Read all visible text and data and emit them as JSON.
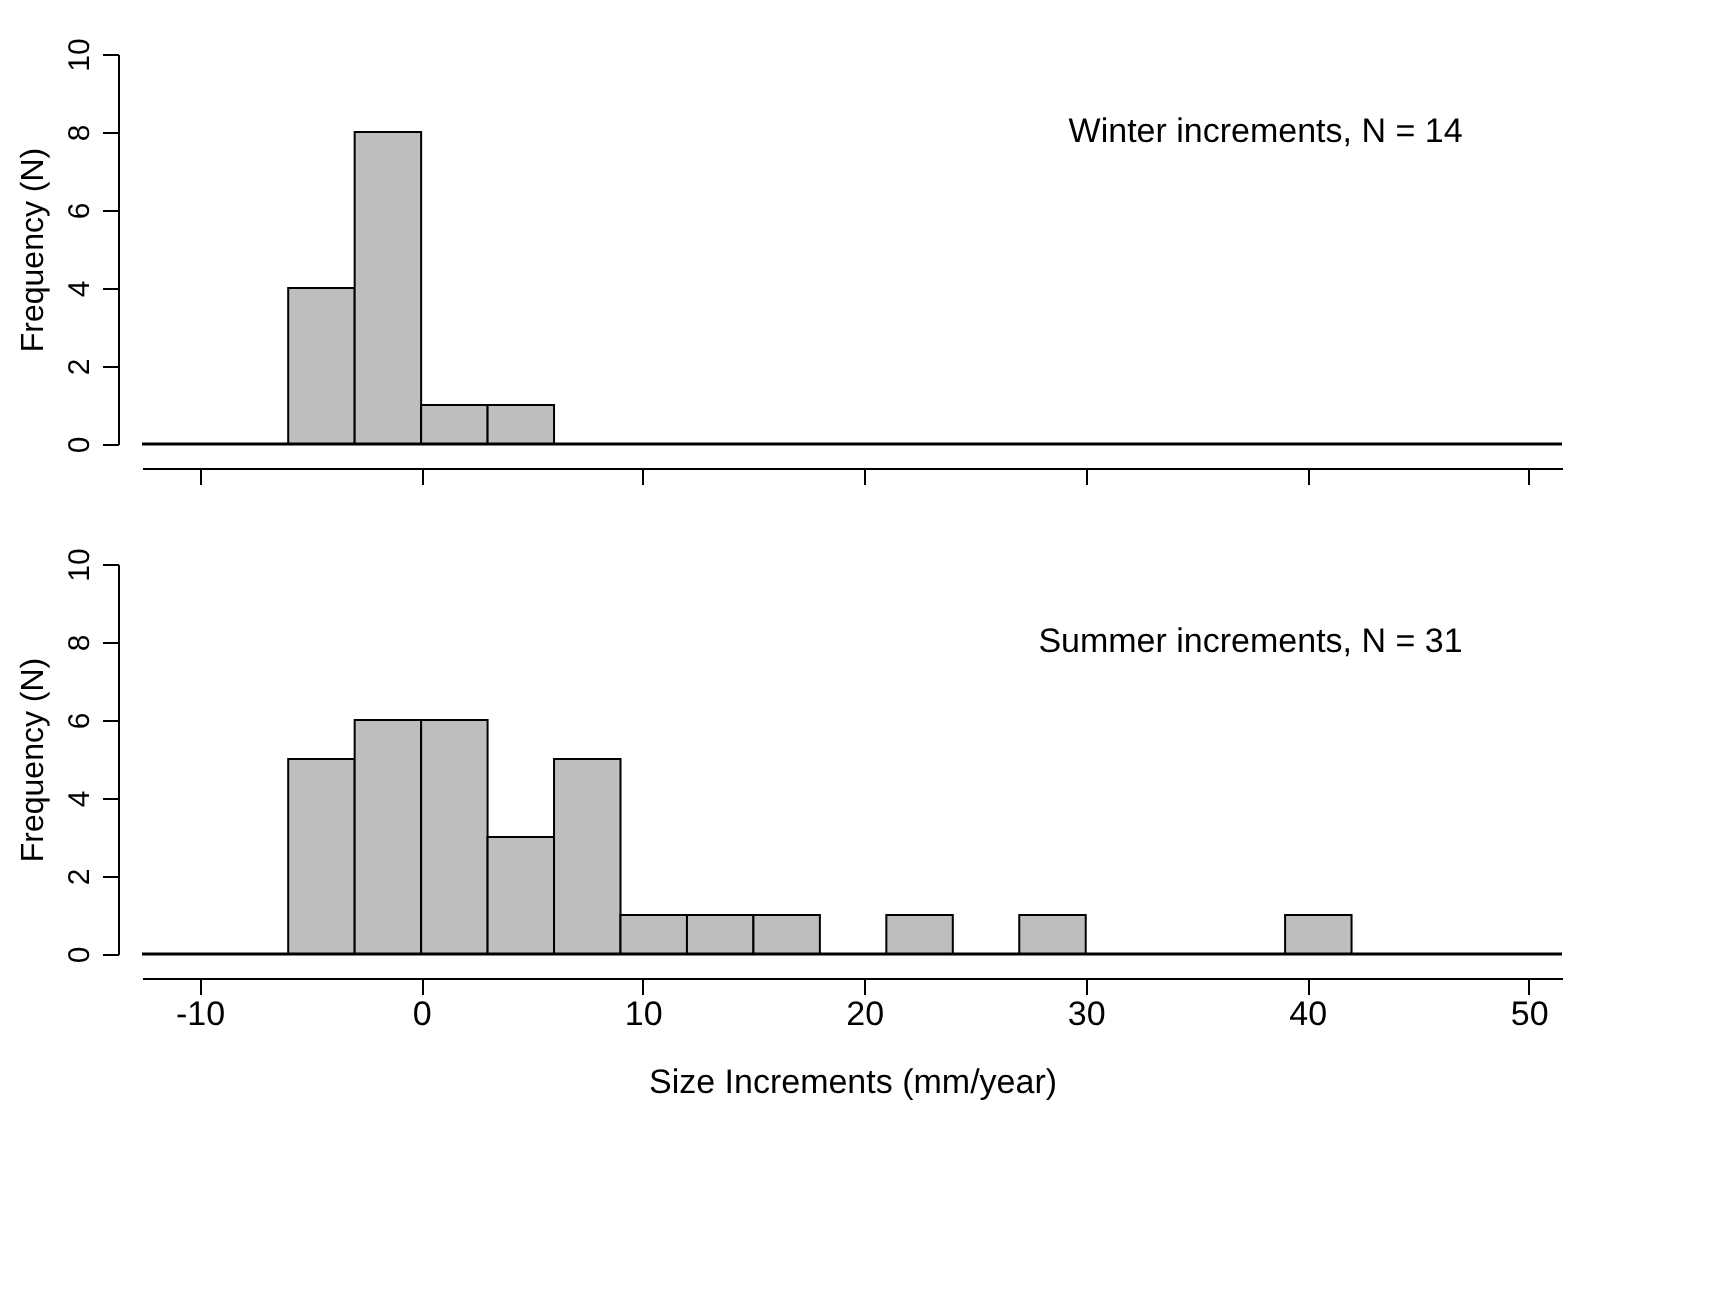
{
  "chart_data": [
    {
      "type": "histogram",
      "bins": [
        -6,
        -3,
        0,
        3,
        6
      ],
      "values": [
        4,
        8,
        1,
        1
      ],
      "color": "#bebebe",
      "xlim": [
        -12.6,
        51.5
      ],
      "xticks": [
        -10,
        0,
        10,
        20,
        30,
        40,
        50
      ],
      "ylim": [
        0,
        10
      ],
      "yticks": [
        0,
        2,
        4,
        6,
        8,
        10
      ],
      "ylabel": "Frequency (N)",
      "tick_labels": "y",
      "annotations": [
        "Winter increments, N = 14"
      ]
    },
    {
      "type": "histogram",
      "bins": [
        -6,
        -3,
        0,
        3,
        6,
        9,
        12,
        15,
        18,
        21,
        24,
        27,
        30,
        33,
        36,
        39,
        42
      ],
      "values": [
        5,
        6,
        6,
        3,
        5,
        1,
        1,
        1,
        0,
        1,
        0,
        1,
        0,
        0,
        0,
        1
      ],
      "color": "#bebebe",
      "xlim": [
        -12.6,
        51.5
      ],
      "xticks": [
        -10,
        0,
        10,
        20,
        30,
        40,
        50
      ],
      "ylim": [
        0,
        10
      ],
      "yticks": [
        0,
        2,
        4,
        6,
        8,
        10
      ],
      "ylabel": "Frequency (N)",
      "xlabel": "Size Increments (mm/year)",
      "annotations": [
        "Summer increments, N = 31"
      ]
    }
  ]
}
